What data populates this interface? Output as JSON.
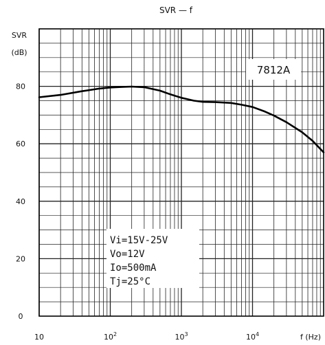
{
  "chart_data": {
    "type": "line",
    "title": "SVR — f",
    "ylabel": "SVR",
    "ylabel_unit": "(dB)",
    "xlabel": "f (Hz)",
    "xscale": "log",
    "xlim": [
      10,
      100000
    ],
    "ylim": [
      0,
      100
    ],
    "grid": true,
    "x_tick_labels": [
      {
        "value": 10,
        "base": "10",
        "exp": ""
      },
      {
        "value": 100,
        "base": "10",
        "exp": "2"
      },
      {
        "value": 1000,
        "base": "10",
        "exp": "3"
      },
      {
        "value": 10000,
        "base": "10",
        "exp": "4"
      }
    ],
    "y_ticks": [
      0,
      20,
      40,
      60,
      80
    ],
    "y_tick_labels": [
      "0",
      "20",
      "40",
      "60",
      "80"
    ],
    "series": [
      {
        "name": "7812A",
        "color": "#000000",
        "x": [
          10,
          20,
          40,
          70,
          100,
          150,
          200,
          300,
          500,
          700,
          1000,
          1500,
          2000,
          3000,
          5000,
          7000,
          10000,
          15000,
          20000,
          30000,
          50000,
          70000,
          100000
        ],
        "y": [
          76.2,
          77.0,
          78.3,
          79.2,
          79.6,
          79.8,
          79.9,
          79.7,
          78.5,
          77.2,
          76.0,
          75.0,
          74.6,
          74.5,
          74.2,
          73.6,
          72.8,
          71.2,
          69.8,
          67.5,
          64.0,
          61.0,
          57.0
        ]
      }
    ],
    "annotations": {
      "series_label": "7812A",
      "conditions": [
        "Vi=15V-25V",
        "Vo=12V",
        "Io=500mA",
        "Tj=25°C"
      ]
    }
  }
}
